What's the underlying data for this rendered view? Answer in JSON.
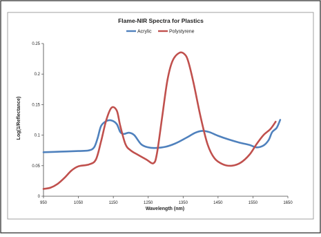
{
  "chart_data": {
    "type": "line",
    "title": "Flame-NIR Spectra for Plastics",
    "xlabel": "Wavelength (nm)",
    "ylabel": "Log(1/Reflectance)",
    "xlim": [
      950,
      1650
    ],
    "ylim": [
      0,
      0.25
    ],
    "x_ticks": [
      950,
      1050,
      1150,
      1250,
      1350,
      1450,
      1550,
      1650
    ],
    "y_ticks": [
      0,
      0.05,
      0.1,
      0.15,
      0.2,
      0.25
    ],
    "x_tick_labels": [
      "950",
      "1050",
      "1150",
      "1250",
      "1350",
      "1450",
      "1550",
      "1650"
    ],
    "y_tick_labels": [
      "0",
      "0.05",
      "0.1",
      "0.15",
      "0.2",
      "0.25"
    ],
    "grid": false,
    "legend_position": "top-center",
    "series": [
      {
        "name": "Acrylic",
        "color": "#4f81bd",
        "points": [
          [
            950,
            0.072
          ],
          [
            1000,
            0.073
          ],
          [
            1050,
            0.074
          ],
          [
            1080,
            0.075
          ],
          [
            1095,
            0.08
          ],
          [
            1105,
            0.095
          ],
          [
            1115,
            0.115
          ],
          [
            1130,
            0.123
          ],
          [
            1145,
            0.124
          ],
          [
            1160,
            0.118
          ],
          [
            1170,
            0.105
          ],
          [
            1180,
            0.102
          ],
          [
            1195,
            0.104
          ],
          [
            1210,
            0.1
          ],
          [
            1230,
            0.085
          ],
          [
            1250,
            0.08
          ],
          [
            1270,
            0.079
          ],
          [
            1300,
            0.081
          ],
          [
            1330,
            0.087
          ],
          [
            1360,
            0.096
          ],
          [
            1385,
            0.104
          ],
          [
            1405,
            0.107
          ],
          [
            1425,
            0.105
          ],
          [
            1450,
            0.099
          ],
          [
            1480,
            0.093
          ],
          [
            1510,
            0.088
          ],
          [
            1540,
            0.084
          ],
          [
            1560,
            0.08
          ],
          [
            1580,
            0.083
          ],
          [
            1595,
            0.092
          ],
          [
            1605,
            0.105
          ],
          [
            1618,
            0.112
          ],
          [
            1628,
            0.125
          ]
        ]
      },
      {
        "name": "Polystyrene",
        "color": "#c0504d",
        "points": [
          [
            950,
            0.012
          ],
          [
            970,
            0.014
          ],
          [
            990,
            0.02
          ],
          [
            1010,
            0.03
          ],
          [
            1030,
            0.042
          ],
          [
            1050,
            0.049
          ],
          [
            1080,
            0.052
          ],
          [
            1100,
            0.06
          ],
          [
            1115,
            0.09
          ],
          [
            1130,
            0.125
          ],
          [
            1145,
            0.145
          ],
          [
            1160,
            0.14
          ],
          [
            1170,
            0.115
          ],
          [
            1185,
            0.085
          ],
          [
            1200,
            0.075
          ],
          [
            1220,
            0.068
          ],
          [
            1245,
            0.06
          ],
          [
            1265,
            0.054
          ],
          [
            1275,
            0.07
          ],
          [
            1290,
            0.13
          ],
          [
            1305,
            0.19
          ],
          [
            1320,
            0.222
          ],
          [
            1340,
            0.235
          ],
          [
            1355,
            0.232
          ],
          [
            1365,
            0.22
          ],
          [
            1380,
            0.185
          ],
          [
            1400,
            0.13
          ],
          [
            1420,
            0.085
          ],
          [
            1440,
            0.062
          ],
          [
            1465,
            0.052
          ],
          [
            1490,
            0.05
          ],
          [
            1515,
            0.055
          ],
          [
            1540,
            0.068
          ],
          [
            1560,
            0.085
          ],
          [
            1580,
            0.1
          ],
          [
            1600,
            0.11
          ],
          [
            1615,
            0.122
          ]
        ]
      }
    ]
  }
}
